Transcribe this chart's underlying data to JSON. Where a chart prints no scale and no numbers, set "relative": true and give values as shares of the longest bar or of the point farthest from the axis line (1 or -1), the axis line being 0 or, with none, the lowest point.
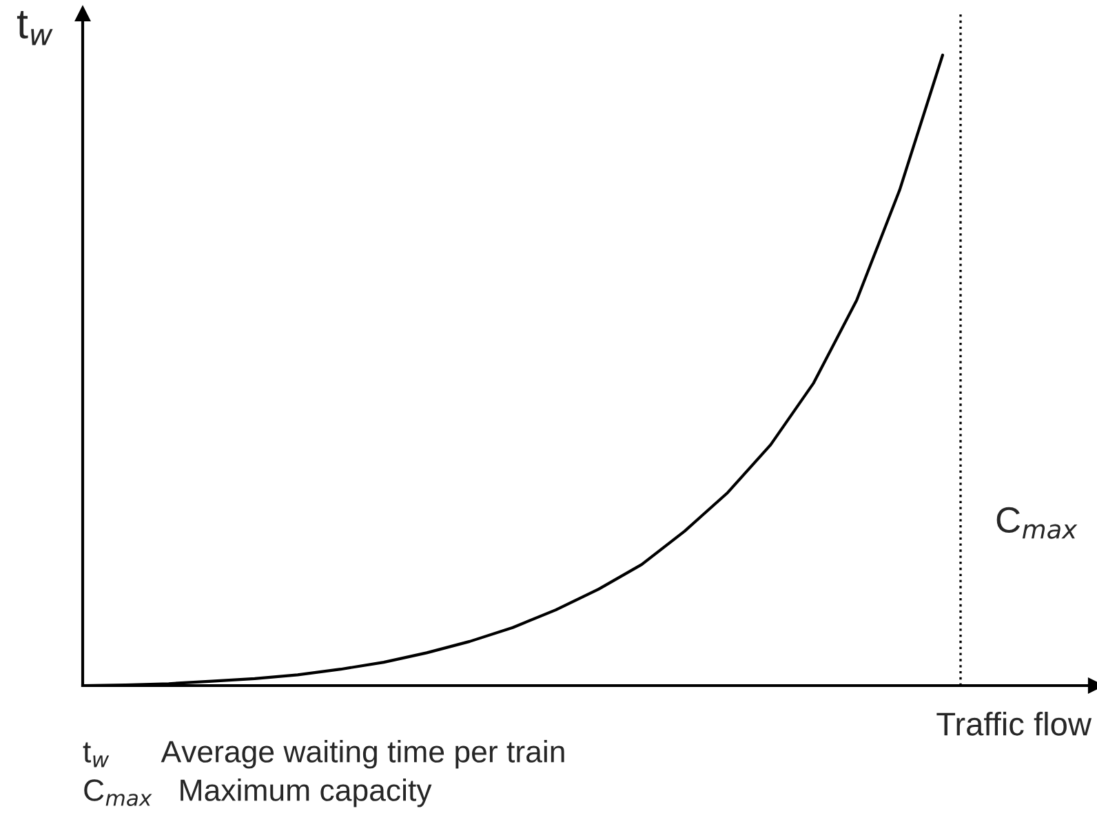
{
  "chart_data": {
    "type": "line",
    "relative": true,
    "categories": [
      null,
      null,
      null,
      null,
      null,
      null,
      null,
      null,
      null,
      null,
      null,
      null,
      null,
      null,
      null,
      null,
      null,
      null,
      null,
      null,
      null
    ],
    "series": [
      {
        "color": "#000000",
        "values": [
          0,
          0.001,
          0.003,
          0.007,
          0.011,
          0.017,
          0.026,
          0.037,
          0.052,
          0.07,
          0.092,
          0.12,
          0.153,
          0.192,
          0.245,
          0.306,
          0.382,
          0.48,
          0.611,
          0.786,
          1
        ]
      }
    ],
    "ylabel": "t$_{w}$",
    "xlabel": "Traffic flow",
    "annotations": [
      "C$_{max}$",
      "t$_{w}$      Average waiting time per train",
      "C$_{max}$   Maximum capacity"
    ],
    "marker": "none",
    "line_style": "solid",
    "legend": false,
    "tick_labels": false
  }
}
